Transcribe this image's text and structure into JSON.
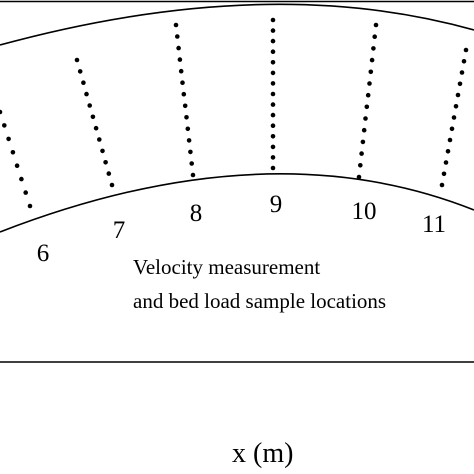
{
  "diagram": {
    "section_numbers": [
      "6",
      "7",
      "8",
      "9",
      "10",
      "11"
    ],
    "annotation_line1": "Velocity measurement",
    "annotation_line2": "and bed load sample locations",
    "x_axis_label": "x (m)",
    "colors": {
      "ink": "#000000",
      "background": "#ffffff"
    }
  }
}
